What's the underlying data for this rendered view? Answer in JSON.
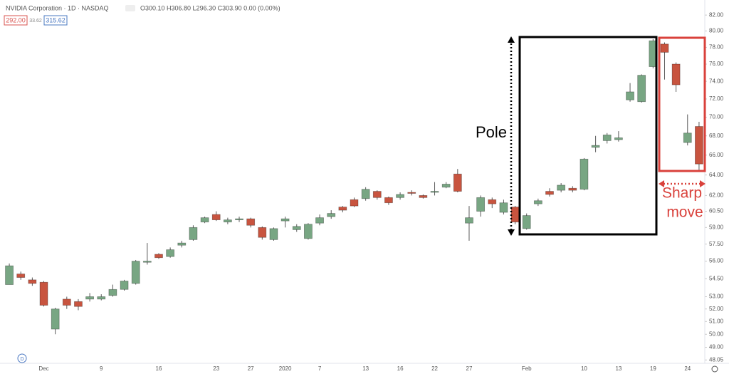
{
  "chart_data": {
    "type": "candlestick",
    "title": "NVIDIA Corporation · 1D · NASDAQ",
    "ohlc_text": "O300.10 H306.80 L296.30 C303.90 0.00 (0.00%)",
    "badges": [
      "292.00",
      "33.62",
      "315.62"
    ],
    "event_marker": "D",
    "annotations": {
      "pole": "Pole",
      "move_1": "Sharp",
      "move_2": "move"
    },
    "categories": [
      null,
      null,
      null,
      "Dec",
      null,
      null,
      null,
      null,
      "9",
      null,
      null,
      null,
      null,
      "16",
      null,
      null,
      null,
      null,
      "23",
      null,
      null,
      "27",
      null,
      null,
      "2020",
      null,
      null,
      "7",
      null,
      null,
      null,
      "13",
      null,
      null,
      "16",
      null,
      null,
      "22",
      null,
      null,
      "27",
      null,
      null,
      null,
      null,
      "Feb",
      null,
      null,
      null,
      null,
      "10",
      null,
      null,
      "13",
      null,
      null,
      "19",
      null,
      null,
      "24",
      null
    ],
    "open": [
      54.0,
      54.9,
      54.4,
      54.2,
      50.4,
      52.8,
      52.6,
      52.8,
      52.8,
      53.1,
      53.6,
      54.1,
      55.9,
      56.6,
      56.4,
      57.4,
      57.9,
      59.5,
      60.2,
      59.5,
      59.7,
      59.8,
      59.0,
      57.9,
      59.6,
      58.8,
      58.0,
      59.4,
      60.0,
      60.9,
      61.6,
      61.7,
      62.4,
      61.8,
      61.8,
      62.3,
      62.0,
      62.3,
      62.8,
      64.1,
      59.4,
      60.5,
      61.6,
      60.4,
      60.9,
      58.9,
      61.2,
      62.4,
      62.5,
      62.7,
      62.6,
      66.8,
      67.5,
      67.6,
      71.9,
      71.7,
      75.7,
      78.4,
      76.0,
      67.3,
      69.0
    ],
    "high": [
      55.8,
      55.1,
      54.6,
      54.3,
      52.1,
      53.0,
      52.8,
      53.3,
      53.2,
      54.0,
      54.4,
      56.1,
      57.6,
      56.7,
      57.2,
      57.8,
      59.2,
      60.0,
      60.5,
      59.9,
      60.0,
      59.9,
      59.1,
      59.0,
      60.0,
      59.3,
      59.4,
      60.2,
      60.6,
      61.0,
      61.8,
      62.8,
      62.5,
      61.9,
      62.3,
      62.5,
      62.1,
      63.3,
      63.3,
      64.6,
      61.0,
      62.0,
      61.8,
      61.6,
      61.0,
      60.3,
      61.7,
      62.7,
      63.2,
      62.9,
      65.7,
      68.0,
      68.3,
      68.5,
      73.8,
      74.8,
      79.0,
      78.6,
      76.2,
      70.3,
      69.5
    ],
    "low": [
      54.0,
      54.4,
      53.9,
      52.2,
      50.0,
      52.0,
      51.9,
      52.6,
      52.7,
      53.0,
      53.5,
      54.0,
      55.7,
      56.2,
      56.3,
      57.2,
      57.8,
      59.4,
      59.6,
      59.3,
      59.5,
      59.0,
      57.9,
      57.8,
      59.0,
      58.6,
      57.9,
      59.2,
      59.8,
      60.4,
      60.9,
      61.5,
      61.6,
      61.1,
      61.6,
      62.0,
      61.7,
      62.0,
      62.7,
      62.3,
      57.8,
      60.0,
      60.8,
      60.2,
      59.3,
      58.8,
      61.0,
      61.9,
      62.3,
      62.3,
      62.5,
      66.3,
      67.2,
      67.4,
      71.7,
      71.6,
      75.5,
      74.2,
      72.8,
      67.0,
      64.5
    ],
    "close": [
      55.6,
      54.6,
      54.1,
      52.3,
      52.0,
      52.3,
      52.2,
      53.0,
      53.0,
      53.6,
      54.3,
      56.0,
      56.0,
      56.3,
      57.0,
      57.6,
      59.0,
      59.9,
      59.7,
      59.7,
      59.8,
      59.2,
      58.1,
      58.9,
      59.8,
      59.1,
      59.3,
      59.9,
      60.3,
      60.6,
      61.0,
      62.6,
      61.8,
      61.3,
      62.1,
      62.2,
      61.8,
      62.4,
      63.1,
      62.4,
      59.9,
      61.8,
      61.2,
      61.3,
      59.5,
      60.1,
      61.5,
      62.1,
      63.0,
      62.5,
      65.6,
      67.0,
      68.1,
      67.8,
      72.8,
      74.7,
      78.8,
      77.4,
      73.6,
      68.3,
      65.1
    ],
    "up_color": "#78a683",
    "down_color": "#c8543f",
    "log_scale": true,
    "grid": false,
    "ylim": [
      47.8,
      83.2
    ],
    "yticks": [
      {
        "value": 82,
        "label": "82.00"
      },
      {
        "value": 80,
        "label": "80.00"
      },
      {
        "value": 78,
        "label": "78.00"
      },
      {
        "value": 76,
        "label": "76.00"
      },
      {
        "value": 74,
        "label": "74.00"
      },
      {
        "value": 72,
        "label": "72.00"
      },
      {
        "value": 70,
        "label": "70.00"
      },
      {
        "value": 68,
        "label": "68.00"
      },
      {
        "value": 66,
        "label": "66.00"
      },
      {
        "value": 64,
        "label": "64.00"
      },
      {
        "value": 62,
        "label": "62.00"
      },
      {
        "value": 60.5,
        "label": "60.50"
      },
      {
        "value": 59,
        "label": "59.00"
      },
      {
        "value": 57.5,
        "label": "57.50"
      },
      {
        "value": 56,
        "label": "56.00"
      },
      {
        "value": 54.5,
        "label": "54.50"
      },
      {
        "value": 53,
        "label": "53.00"
      },
      {
        "value": 52,
        "label": "52.00"
      },
      {
        "value": 51,
        "label": "51.00"
      },
      {
        "value": 50,
        "label": "50.00"
      },
      {
        "value": 49,
        "label": "49.00"
      },
      48.05
    ]
  }
}
